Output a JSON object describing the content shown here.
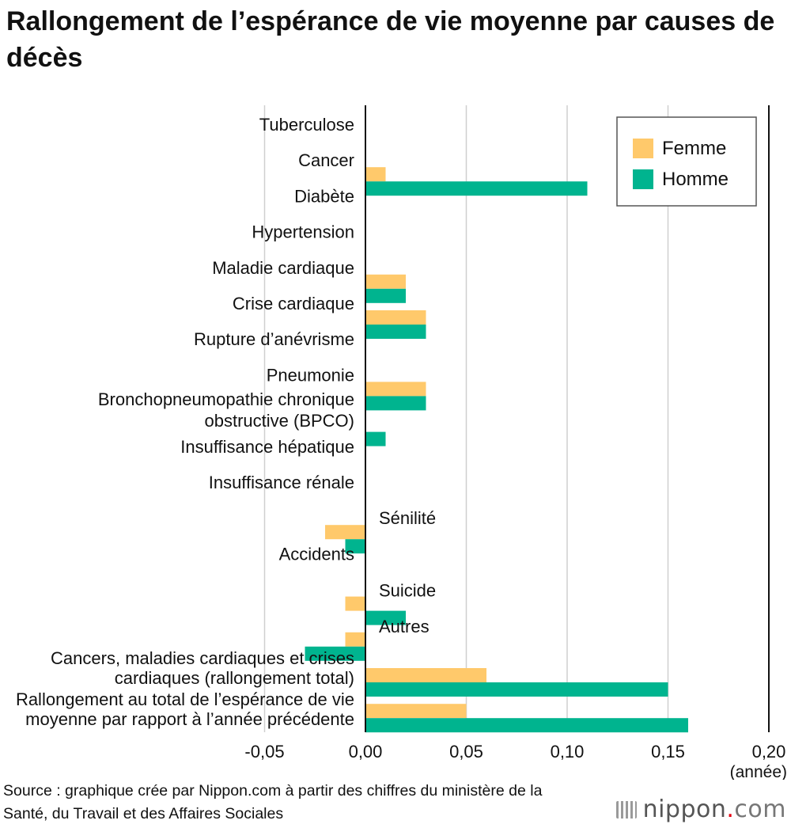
{
  "chart_data": {
    "type": "bar",
    "orientation": "horizontal",
    "title": "Rallongement de l’espérance de vie moyenne par causes de décès",
    "unit_label": "(année)",
    "xlim": [
      -0.05,
      0.2
    ],
    "xticks": [
      {
        "value": -0.05,
        "label": "-0,05"
      },
      {
        "value": 0.0,
        "label": "0,00"
      },
      {
        "value": 0.05,
        "label": "0,05"
      },
      {
        "value": 0.1,
        "label": "0,10"
      },
      {
        "value": 0.15,
        "label": "0,15"
      },
      {
        "value": 0.2,
        "label": "0,20"
      }
    ],
    "grid": true,
    "legend_position": "top-right",
    "categories": [
      [
        "Tuberculose"
      ],
      [
        "Cancer"
      ],
      [
        "Diabète"
      ],
      [
        "Hypertension"
      ],
      [
        "Maladie cardiaque"
      ],
      [
        "Crise cardiaque"
      ],
      [
        "Rupture d’anévrisme"
      ],
      [
        "Pneumonie"
      ],
      [
        "Bronchopneumopathie chronique",
        "obstructive (BPCO)"
      ],
      [
        "Insuffisance hépatique"
      ],
      [
        "Insuffisance rénale"
      ],
      [
        "Sénilité"
      ],
      [
        "Accidents"
      ],
      [
        "Suicide"
      ],
      [
        "Autres"
      ],
      [
        "Cancers, maladies cardiaques et crises",
        "cardiaques (rallongement total)"
      ],
      [
        "Rallongement au total de l’espérance de vie",
        "moyenne par rapport à l’année précédente"
      ]
    ],
    "series": [
      {
        "name": "Femme",
        "color": "#FFC96B",
        "values": [
          0,
          0.01,
          0,
          0,
          0.02,
          0.03,
          0,
          0.03,
          0,
          0,
          0,
          -0.02,
          0,
          -0.01,
          -0.01,
          0.06,
          0.05
        ]
      },
      {
        "name": "Homme",
        "color": "#00B48F",
        "values": [
          0,
          0.11,
          0,
          0,
          0.02,
          0.03,
          0,
          0.03,
          0.01,
          0,
          0,
          -0.01,
          0,
          0.02,
          -0.03,
          0.15,
          0.16
        ]
      }
    ]
  },
  "source": "Source : graphique crée par Nippon.com à partir des chiffres du ministère de la Santé, du Travail et des Affaires Sociales",
  "logo": {
    "name": "nippon",
    "dot": ".",
    "suffix": "com"
  }
}
